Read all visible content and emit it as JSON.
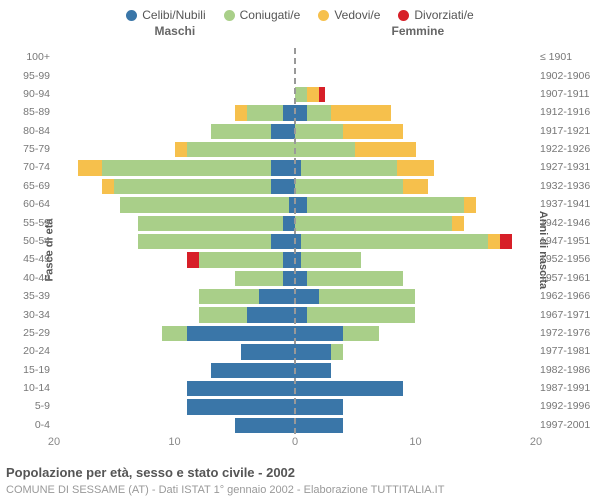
{
  "chart": {
    "type": "population-pyramid",
    "title": "Popolazione per età, sesso e stato civile - 2002",
    "subtitle": "COMUNE DI SESSAME (AT) - Dati ISTAT 1° gennaio 2002 - Elaborazione TUTTITALIA.IT",
    "header_male": "Maschi",
    "header_female": "Femmine",
    "y_title_left": "Fasce di età",
    "y_title_right": "Anni di nascita",
    "x_max": 20,
    "x_ticks": [
      20,
      10,
      0,
      10,
      20
    ],
    "background_color": "#ffffff",
    "grid_color": "#ffffff",
    "axis_text_color": "#888888",
    "title_color": "#5a5a5a",
    "subtitle_color": "#9a9a9a",
    "title_fontsize": 13,
    "subtitle_fontsize": 11,
    "label_fontsize": 10.5,
    "legend": [
      {
        "label": "Celibi/Nubili",
        "color": "#3a76a8"
      },
      {
        "label": "Coniugati/e",
        "color": "#a9cf89"
      },
      {
        "label": "Vedovi/e",
        "color": "#f6c04c"
      },
      {
        "label": "Divorziati/e",
        "color": "#d71f28"
      }
    ],
    "age_labels": [
      "0-4",
      "5-9",
      "10-14",
      "15-19",
      "20-24",
      "25-29",
      "30-34",
      "35-39",
      "40-44",
      "45-49",
      "50-54",
      "55-59",
      "60-64",
      "65-69",
      "70-74",
      "75-79",
      "80-84",
      "85-89",
      "90-94",
      "95-99",
      "100+"
    ],
    "year_labels": [
      "1997-2001",
      "1992-1996",
      "1987-1991",
      "1982-1986",
      "1977-1981",
      "1972-1976",
      "1967-1971",
      "1962-1966",
      "1957-1961",
      "1952-1956",
      "1947-1951",
      "1942-1946",
      "1937-1941",
      "1932-1936",
      "1927-1931",
      "1922-1926",
      "1917-1921",
      "1912-1916",
      "1907-1911",
      "1902-1906",
      "≤ 1901"
    ],
    "male": [
      {
        "cel": 5,
        "con": 0,
        "ved": 0,
        "div": 0
      },
      {
        "cel": 9,
        "con": 0,
        "ved": 0,
        "div": 0
      },
      {
        "cel": 9,
        "con": 0,
        "ved": 0,
        "div": 0
      },
      {
        "cel": 7,
        "con": 0,
        "ved": 0,
        "div": 0
      },
      {
        "cel": 4.5,
        "con": 0,
        "ved": 0,
        "div": 0
      },
      {
        "cel": 9,
        "con": 2,
        "ved": 0,
        "div": 0
      },
      {
        "cel": 4,
        "con": 4,
        "ved": 0,
        "div": 0
      },
      {
        "cel": 3,
        "con": 5,
        "ved": 0,
        "div": 0
      },
      {
        "cel": 1,
        "con": 4,
        "ved": 0,
        "div": 0
      },
      {
        "cel": 1,
        "con": 7,
        "ved": 0,
        "div": 1
      },
      {
        "cel": 2,
        "con": 11,
        "ved": 0,
        "div": 0
      },
      {
        "cel": 1,
        "con": 12,
        "ved": 0,
        "div": 0
      },
      {
        "cel": 0.5,
        "con": 14,
        "ved": 0,
        "div": 0
      },
      {
        "cel": 2,
        "con": 13,
        "ved": 1,
        "div": 0
      },
      {
        "cel": 2,
        "con": 14,
        "ved": 2,
        "div": 0
      },
      {
        "cel": 0,
        "con": 9,
        "ved": 1,
        "div": 0
      },
      {
        "cel": 2,
        "con": 5,
        "ved": 0,
        "div": 0
      },
      {
        "cel": 1,
        "con": 3,
        "ved": 1,
        "div": 0
      },
      {
        "cel": 0,
        "con": 0,
        "ved": 0,
        "div": 0
      },
      {
        "cel": 0,
        "con": 0,
        "ved": 0,
        "div": 0
      },
      {
        "cel": 0,
        "con": 0,
        "ved": 0,
        "div": 0
      }
    ],
    "female": [
      {
        "cel": 4,
        "con": 0,
        "ved": 0,
        "div": 0
      },
      {
        "cel": 4,
        "con": 0,
        "ved": 0,
        "div": 0
      },
      {
        "cel": 9,
        "con": 0,
        "ved": 0,
        "div": 0
      },
      {
        "cel": 3,
        "con": 0,
        "ved": 0,
        "div": 0
      },
      {
        "cel": 3,
        "con": 1,
        "ved": 0,
        "div": 0
      },
      {
        "cel": 4,
        "con": 3,
        "ved": 0,
        "div": 0
      },
      {
        "cel": 1,
        "con": 9,
        "ved": 0,
        "div": 0
      },
      {
        "cel": 2,
        "con": 8,
        "ved": 0,
        "div": 0
      },
      {
        "cel": 1,
        "con": 8,
        "ved": 0,
        "div": 0
      },
      {
        "cel": 0.5,
        "con": 5,
        "ved": 0,
        "div": 0
      },
      {
        "cel": 0.5,
        "con": 15.5,
        "ved": 1,
        "div": 1
      },
      {
        "cel": 0,
        "con": 13,
        "ved": 1,
        "div": 0
      },
      {
        "cel": 1,
        "con": 13,
        "ved": 1,
        "div": 0
      },
      {
        "cel": 0,
        "con": 9,
        "ved": 2,
        "div": 0
      },
      {
        "cel": 0.5,
        "con": 8,
        "ved": 3,
        "div": 0
      },
      {
        "cel": 0,
        "con": 5,
        "ved": 5,
        "div": 0
      },
      {
        "cel": 0,
        "con": 4,
        "ved": 5,
        "div": 0
      },
      {
        "cel": 1,
        "con": 2,
        "ved": 5,
        "div": 0
      },
      {
        "cel": 0,
        "con": 1,
        "ved": 1,
        "div": 0.5
      },
      {
        "cel": 0,
        "con": 0,
        "ved": 0,
        "div": 0
      },
      {
        "cel": 0,
        "con": 0,
        "ved": 0,
        "div": 0
      }
    ]
  }
}
